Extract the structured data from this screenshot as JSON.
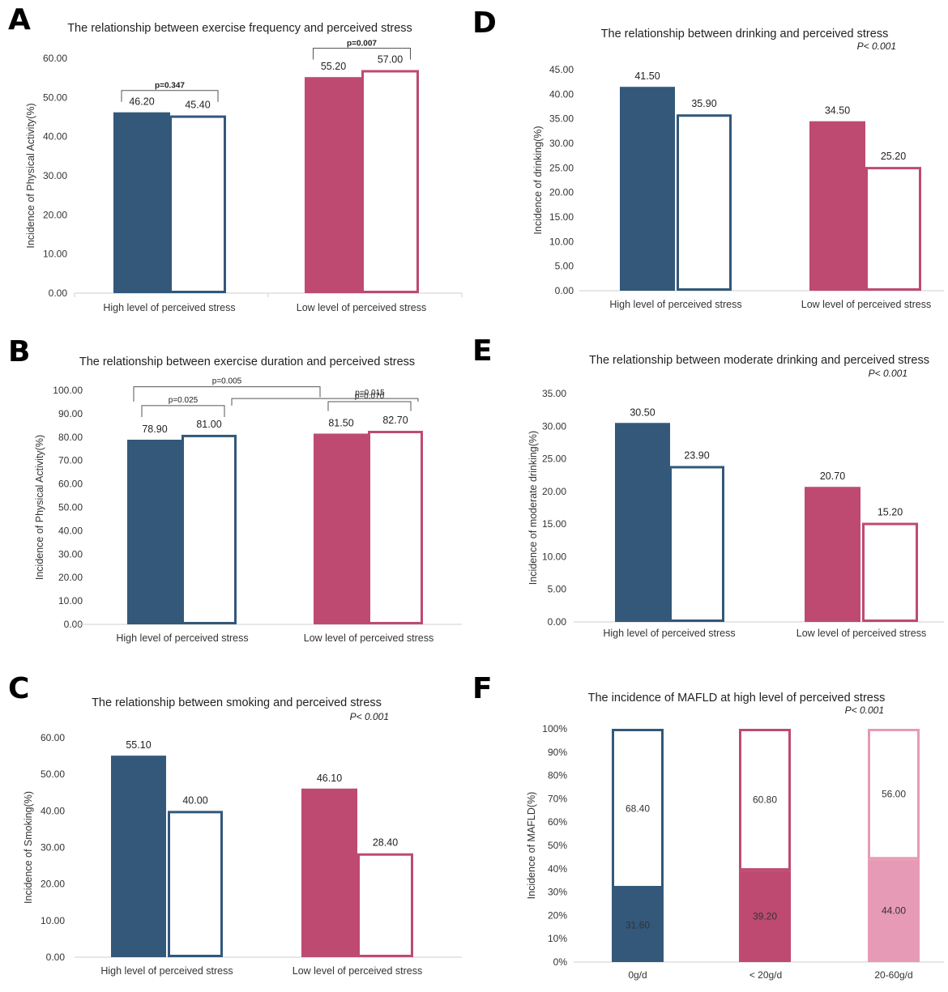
{
  "panel_letters": [
    "A",
    "B",
    "C",
    "D",
    "E",
    "F"
  ],
  "colors": {
    "navy": "#33587a",
    "crimson": "#be4a72",
    "pink_light": "#e79ab6",
    "pink_outline": "#e79ab6"
  },
  "chart_data": [
    {
      "panel": "A",
      "type": "bar",
      "title": "The relationship between exercise frequency and perceived stress",
      "ylabel": "Incidence of Physical Activity(%)",
      "ylim": [
        0,
        60
      ],
      "yticks": [
        "0.00",
        "10.00",
        "20.00",
        "30.00",
        "40.00",
        "50.00",
        "60.00"
      ],
      "categories": [
        "High level of perceived stress",
        "Low level of perceived stress"
      ],
      "series": [
        {
          "name": "filled",
          "values": [
            46.2,
            55.2
          ]
        },
        {
          "name": "outline",
          "values": [
            45.4,
            57.0
          ]
        }
      ],
      "value_labels": [
        [
          "46.20",
          "45.40"
        ],
        [
          "55.20",
          "57.00"
        ]
      ],
      "brackets": [
        {
          "text": "p=0.347",
          "from": [
            0,
            0
          ],
          "to": [
            0,
            1
          ]
        },
        {
          "text": "p=0.007",
          "from": [
            1,
            0
          ],
          "to": [
            1,
            1
          ]
        }
      ]
    },
    {
      "panel": "B",
      "type": "bar",
      "title": "The relationship between exercise duration and perceived stress",
      "ylabel": "Incidence of Physical Activity(%)",
      "ylim": [
        0,
        100
      ],
      "yticks": [
        "0.00",
        "10.00",
        "20.00",
        "30.00",
        "40.00",
        "50.00",
        "60.00",
        "70.00",
        "80.00",
        "90.00",
        "100.00"
      ],
      "categories": [
        "High level of perceived stress",
        "Low level of perceived stress"
      ],
      "series": [
        {
          "name": "filled",
          "values": [
            78.9,
            81.5
          ]
        },
        {
          "name": "outline",
          "values": [
            81.0,
            82.7
          ]
        }
      ],
      "value_labels": [
        [
          "78.90",
          "81.00"
        ],
        [
          "81.50",
          "82.70"
        ]
      ],
      "brackets": [
        {
          "text": "p=0.025",
          "from": [
            0,
            0
          ],
          "to": [
            0,
            1
          ]
        },
        {
          "text": "p=0.070",
          "from": [
            1,
            0
          ],
          "to": [
            1,
            1
          ]
        },
        {
          "text": "p=0.005",
          "from": [
            0,
            0
          ],
          "to": [
            1,
            0
          ]
        },
        {
          "text": "p=0.015",
          "from": [
            0,
            1
          ],
          "to": [
            1,
            1
          ]
        }
      ]
    },
    {
      "panel": "C",
      "type": "bar",
      "title": "The relationship between smoking and perceived stress",
      "pvalue": "P< 0.001",
      "ylabel": "Incidence of Smoking(%)",
      "ylim": [
        0,
        60
      ],
      "yticks": [
        "0.00",
        "10.00",
        "20.00",
        "30.00",
        "40.00",
        "50.00",
        "60.00"
      ],
      "categories": [
        "High level of perceived stress",
        "Low level of perceived stress"
      ],
      "series": [
        {
          "name": "filled",
          "values": [
            55.1,
            46.1
          ]
        },
        {
          "name": "outline",
          "values": [
            40.0,
            28.4
          ]
        }
      ],
      "value_labels": [
        [
          "55.10",
          "40.00"
        ],
        [
          "46.10",
          "28.40"
        ]
      ]
    },
    {
      "panel": "D",
      "type": "bar",
      "title": "The relationship between drinking and perceived stress",
      "pvalue": "P< 0.001",
      "ylabel": "Incidence of drinking(%)",
      "ylim": [
        0,
        45
      ],
      "yticks": [
        "0.00",
        "5.00",
        "10.00",
        "15.00",
        "20.00",
        "25.00",
        "30.00",
        "35.00",
        "40.00",
        "45.00"
      ],
      "categories": [
        "High level of perceived stress",
        "Low level of perceived stress"
      ],
      "series": [
        {
          "name": "filled",
          "values": [
            41.5,
            34.5
          ]
        },
        {
          "name": "outline",
          "values": [
            35.9,
            25.2
          ]
        }
      ],
      "value_labels": [
        [
          "41.50",
          "35.90"
        ],
        [
          "34.50",
          "25.20"
        ]
      ]
    },
    {
      "panel": "E",
      "type": "bar",
      "title": "The relationship between moderate drinking and perceived stress",
      "pvalue": "P< 0.001",
      "ylabel": "Incidence of moderate drinking(%)",
      "ylim": [
        0,
        35
      ],
      "yticks": [
        "0.00",
        "5.00",
        "10.00",
        "15.00",
        "20.00",
        "25.00",
        "30.00",
        "35.00"
      ],
      "categories": [
        "High level of perceived stress",
        "Low level of perceived stress"
      ],
      "series": [
        {
          "name": "filled",
          "values": [
            30.5,
            20.7
          ]
        },
        {
          "name": "outline",
          "values": [
            23.9,
            15.2
          ]
        }
      ],
      "value_labels": [
        [
          "30.50",
          "23.90"
        ],
        [
          "20.70",
          "15.20"
        ]
      ]
    },
    {
      "panel": "F",
      "type": "stacked-bar",
      "title": "The incidence of MAFLD at high level of perceived stress",
      "pvalue": "P< 0.001",
      "ylabel": "Incidence of MAFLD(%)",
      "ylim": [
        0,
        100
      ],
      "yticks": [
        "0%",
        "10%",
        "20%",
        "30%",
        "40%",
        "50%",
        "60%",
        "70%",
        "80%",
        "90%",
        "100%"
      ],
      "categories": [
        "0g/d",
        "< 20g/d",
        "20-60g/d"
      ],
      "series": [
        {
          "name": "lower",
          "values": [
            31.6,
            39.2,
            44.0
          ]
        },
        {
          "name": "upper",
          "values": [
            68.4,
            60.8,
            56.0
          ]
        }
      ],
      "value_labels": [
        [
          "31.60",
          "68.40"
        ],
        [
          "39.20",
          "60.80"
        ],
        [
          "44.00",
          "56.00"
        ]
      ]
    }
  ]
}
